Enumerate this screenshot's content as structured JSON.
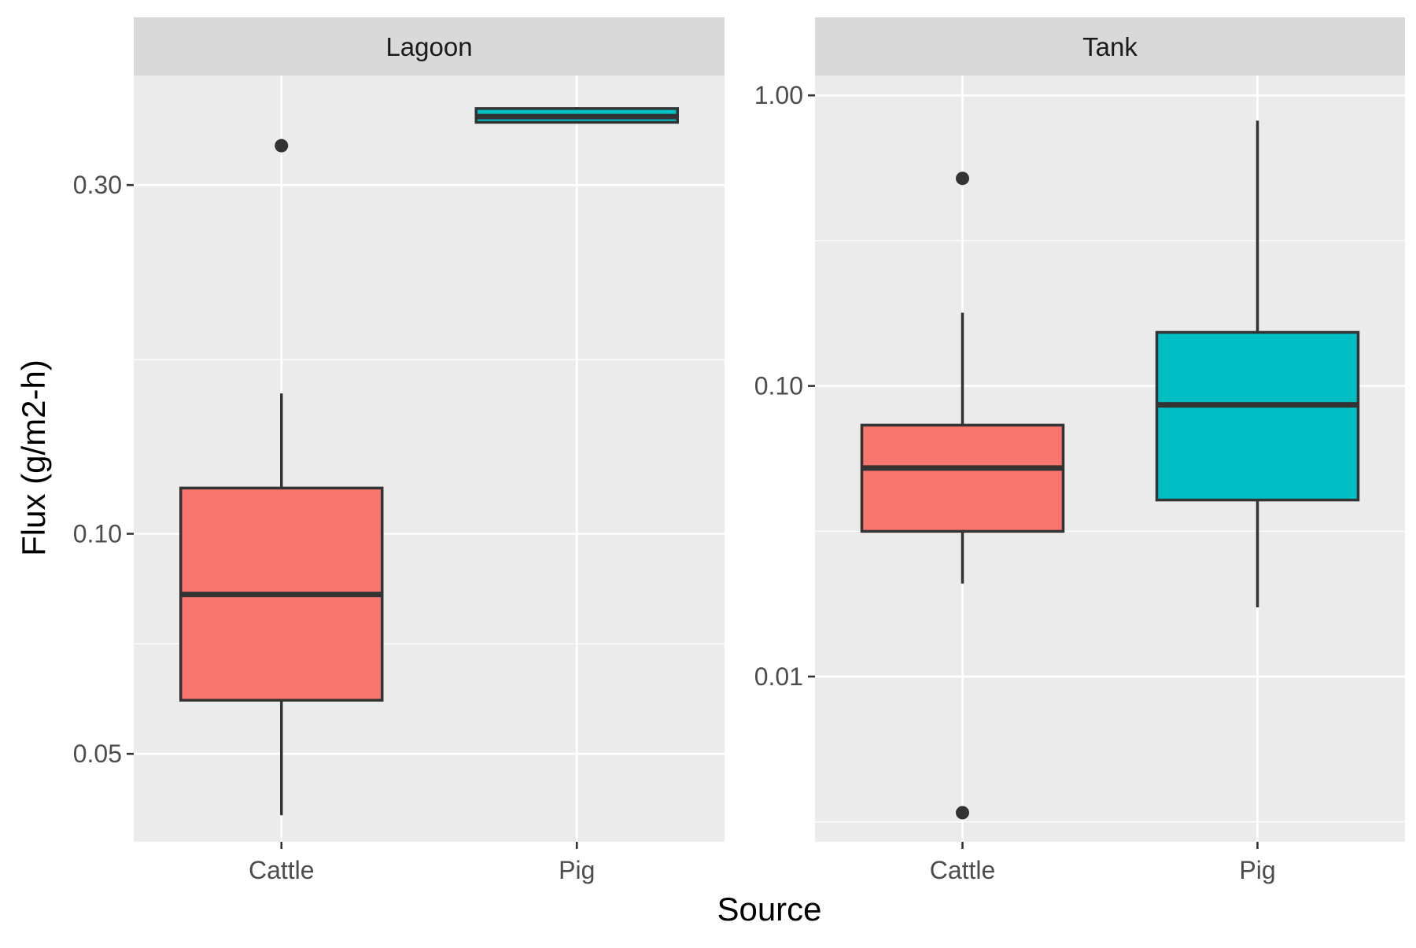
{
  "chart_data": {
    "type": "box",
    "xlabel": "Source",
    "ylabel": "Flux (g/m2-h)",
    "y_scale": "log",
    "grid": true,
    "legend": "none",
    "colors": {
      "Cattle": "#F8766D",
      "Pig": "#00BFC4"
    },
    "panels": [
      {
        "title": "Lagoon",
        "categories": [
          "Cattle",
          "Pig"
        ],
        "ylim": [
          0.0379,
          0.4236
        ],
        "y_ticks": [
          {
            "value": 0.05,
            "label": "0.05"
          },
          {
            "value": 0.1,
            "label": "0.10"
          },
          {
            "value": 0.3,
            "label": "0.30"
          }
        ],
        "boxes": [
          {
            "category": "Cattle",
            "whisker_low": 0.0412,
            "q1": 0.0592,
            "median": 0.0826,
            "q3": 0.1155,
            "whisker_high": 0.1556,
            "outliers": [
              0.3396
            ]
          },
          {
            "category": "Pig",
            "whisker_low": 0.3645,
            "q1": 0.3655,
            "median": 0.3722,
            "q3": 0.3818,
            "whisker_high": 0.3835,
            "outliers": []
          }
        ]
      },
      {
        "title": "Tank",
        "categories": [
          "Cattle",
          "Pig"
        ],
        "ylim": [
          0.0027,
          1.17
        ],
        "y_ticks": [
          {
            "value": 0.01,
            "label": "0.01"
          },
          {
            "value": 0.1,
            "label": "0.10"
          },
          {
            "value": 1.0,
            "label": "1.00"
          }
        ],
        "boxes": [
          {
            "category": "Cattle",
            "whisker_low": 0.0209,
            "q1": 0.0316,
            "median": 0.0522,
            "q3": 0.0733,
            "whisker_high": 0.1786,
            "outliers": [
              0.518,
              0.0034
            ]
          },
          {
            "category": "Pig",
            "whisker_low": 0.0173,
            "q1": 0.0405,
            "median": 0.0861,
            "q3": 0.1529,
            "whisker_high": 0.818,
            "outliers": []
          }
        ]
      }
    ]
  }
}
